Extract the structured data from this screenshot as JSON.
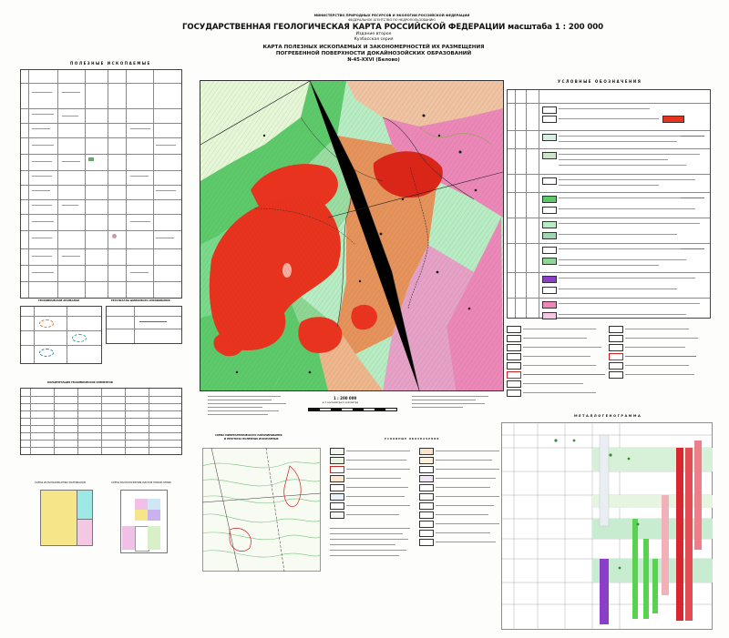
{
  "header": {
    "ministry": "МИНИСТЕРСТВО ПРИРОДНЫХ РЕСУРСОВ И ЭКОЛОГИИ РОССИЙСКОЙ ФЕДЕРАЦИИ",
    "agency": "ФЕДЕРАЛЬНОЕ АГЕНТСТВО ПО НЕДРОПОЛЬЗОВАНИЮ",
    "title": "ГОСУДАРСТВЕННАЯ ГЕОЛОГИЧЕСКАЯ КАРТА РОССИЙСКОЙ ФЕДЕРАЦИИ масштаба 1 : 200 000",
    "edition": "Издание второе",
    "series": "Кузбасская серия",
    "subtitle1": "КАРТА ПОЛЕЗНЫХ ИСКОПАЕМЫХ И ЗАКОНОМЕРНОСТЕЙ ИХ РАЗМЕЩЕНИЯ",
    "subtitle2": "ПОГРЕБЕННОЙ ПОВЕРХНОСТИ ДОКАЙНОЗОЙСКИХ ОБРАЗОВАНИЙ",
    "sheet": "N-45-XXVI (Белово)"
  },
  "left_panel": {
    "minerals_title": "ПОЛЕЗНЫЕ ИСКОПАЕМЫЕ",
    "geochem_title": "ГЕОХИМИЧЕСКИЕ АНОМАЛИИ",
    "results_title": "РЕЗУЛЬТАТЫ ШЛИХОВОГО ОПРОБОВАНИЯ",
    "conc_title": "КОНЦЕНТРАЦИЯ ГЕОХИМИЧЕСКИХ ЭЛЕМЕНТОВ",
    "scheme1_title": "СХЕМА ИСПОЛЬЗОВАННЫХ МАТЕРИАЛОВ",
    "scheme2_title": "СХЕМА РАСПОЛОЖЕНИЯ ЛИСТОВ НОВОЙ СЕРИИ"
  },
  "map": {
    "scale_text": "1 : 200 000",
    "scale_sub": "в 1 сантиметре 2 километра"
  },
  "right_panel": {
    "legend_title": "УСЛОВНЫЕ ОБОЗНАЧЕНИЯ",
    "metallogram_title": "МЕТАЛЛОГЕНОГРАММА"
  },
  "micro": {
    "title1": "СХЕМА МИНЕРАГЕНИЧЕСКОГО РАЙОНИРОВАНИЯ",
    "title2": "И ПРОГНОЗА ПОЛЕЗНЫХ ИСКОПАЕМЫХ",
    "legend_title": "УСЛОВНЫЕ ОБОЗНАЧЕНИЯ"
  },
  "colors": {
    "forest_green": "#5ec96a",
    "mint": "#b9ecc4",
    "red_intrusion": "#e8331e",
    "orange_rock": "#e8915a",
    "pink": "#ef86b9",
    "purple": "#8b3fc9"
  }
}
